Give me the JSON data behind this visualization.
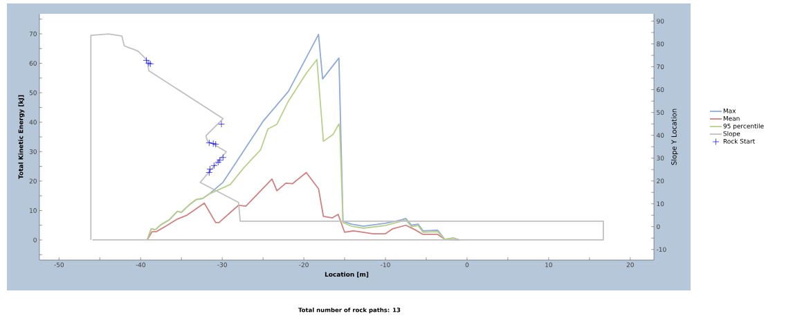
{
  "chart_data": {
    "type": "line",
    "xlabel": "Location [m]",
    "ylabel": "Total Kinetic Energy [kJ]",
    "y2label": "Slope Y Location",
    "xlim": [
      -52.4,
      22.9
    ],
    "ylim": [
      -6.8,
      76.8
    ],
    "y2lim": [
      -14.6,
      93.2
    ],
    "xticks": [
      -50,
      {
        "value": -45,
        "label": null
      },
      -40,
      {
        "value": -35,
        "label": null
      },
      -30,
      {
        "value": -25,
        "label": null
      },
      -20,
      {
        "value": -15,
        "label": null
      },
      -10,
      {
        "value": -5,
        "label": null
      },
      0,
      {
        "value": 5,
        "label": null
      },
      10,
      {
        "value": 15,
        "label": null
      },
      20
    ],
    "yticks": [
      {
        "value": -5,
        "label": null
      },
      0,
      {
        "value": 5,
        "label": null
      },
      10,
      {
        "value": 15,
        "label": null
      },
      20,
      {
        "value": 25,
        "label": null
      },
      30,
      {
        "value": 35,
        "label": null
      },
      40,
      {
        "value": 45,
        "label": null
      },
      50,
      {
        "value": 55,
        "label": null
      },
      60,
      {
        "value": 65,
        "label": null
      },
      70,
      {
        "value": 75,
        "label": null
      }
    ],
    "y2ticks": [
      -10,
      {
        "value": -5,
        "label": null
      },
      0,
      {
        "value": 5,
        "label": null
      },
      10,
      {
        "value": 15,
        "label": null
      },
      20,
      {
        "value": 25,
        "label": null
      },
      30,
      {
        "value": 35,
        "label": null
      },
      40,
      {
        "value": 45,
        "label": null
      },
      50,
      {
        "value": 55,
        "label": null
      },
      60,
      {
        "value": 65,
        "label": null
      },
      70,
      {
        "value": 75,
        "label": null
      },
      80,
      {
        "value": 85,
        "label": null
      },
      90
    ],
    "legend": "right",
    "series": [
      {
        "name": "Max",
        "color": "#8eaad6",
        "x": [
          -39.2,
          -38.7,
          -38.2,
          -37.5,
          -36.5,
          -35.5,
          -35.0,
          -34.1,
          -33.2,
          -32.4,
          -31.6,
          -29.9,
          -25.0,
          -21.9,
          -18.2,
          -17.7,
          -15.7,
          -15.2,
          -14.2,
          -12.7,
          -10.0,
          -8.1,
          -7.5,
          -6.8,
          -6.0,
          -5.4,
          -3.6,
          -2.7,
          -1.7,
          -0.9
        ],
        "values": [
          0,
          3.8,
          3.5,
          5.2,
          6.8,
          9.7,
          9.4,
          11.8,
          13.7,
          14.1,
          15.6,
          19.6,
          40.3,
          50.4,
          69.8,
          54.7,
          61.8,
          6.4,
          5.4,
          4.7,
          5.7,
          6.8,
          7.3,
          5.0,
          5.4,
          3.1,
          3.3,
          0.2,
          0.7,
          0
        ]
      },
      {
        "name": "Mean",
        "color": "#d08080",
        "x": [
          -39.2,
          -38.6,
          -38.1,
          -36.9,
          -35.5,
          -34.4,
          -33.2,
          -32.2,
          -30.8,
          -30.4,
          -28.0,
          -27.1,
          -23.9,
          -23.3,
          -22.2,
          -21.4,
          -19.7,
          -18.2,
          -17.6,
          -16.5,
          -15.8,
          -15.0,
          -13.9,
          -12.7,
          -11.5,
          -10.0,
          -9.1,
          -7.5,
          -6.4,
          -5.4,
          -3.6,
          -2.7,
          -0.9
        ],
        "values": [
          0,
          2.8,
          2.8,
          4.7,
          7.1,
          8.3,
          10.6,
          12.5,
          5.9,
          5.9,
          11.8,
          11.5,
          20.7,
          16.7,
          19.3,
          19.1,
          22.9,
          17.4,
          8.0,
          7.5,
          8.7,
          2.6,
          3.1,
          2.6,
          2.1,
          2.1,
          3.8,
          5.0,
          3.5,
          1.9,
          1.9,
          0.2,
          0
        ]
      },
      {
        "name": "95 percentile",
        "color": "#b8d08a",
        "x": [
          -39.2,
          -38.7,
          -38.2,
          -37.5,
          -36.5,
          -35.5,
          -35.0,
          -34.1,
          -33.2,
          -32.4,
          -31.6,
          -29.0,
          -27.3,
          -25.3,
          -24.4,
          -23.3,
          -21.9,
          -19.7,
          -18.4,
          -17.6,
          -16.4,
          -15.7,
          -15.6,
          -15.2,
          -14.2,
          -12.7,
          -10.0,
          -7.5,
          -6.8,
          -6.0,
          -5.4,
          -3.6,
          -2.7,
          -1.7,
          -0.9
        ],
        "values": [
          0,
          3.8,
          3.5,
          5.2,
          6.8,
          9.7,
          9.4,
          11.8,
          13.7,
          14.1,
          15.6,
          18.9,
          24.7,
          30.6,
          37.7,
          39.3,
          47.1,
          56.6,
          61.3,
          33.5,
          35.9,
          39.4,
          37.9,
          5.9,
          4.7,
          4.0,
          4.9,
          6.8,
          4.5,
          4.9,
          2.6,
          2.8,
          0.2,
          0.7,
          0
        ]
      },
      {
        "name": "Slope",
        "color": "#c0c0c0",
        "axis": "y2",
        "x": [
          -46.1,
          -46.1,
          -45.0,
          -43.9,
          -42.8,
          -42.3,
          -42.2,
          -42.0,
          -41.4,
          -40.9,
          -40.3,
          -39.7,
          -39.2,
          -39.0,
          -29.9,
          -32.0,
          -31.8,
          -31.2,
          -29.5,
          -32.7,
          -28.0,
          -27.8,
          16.7,
          16.7,
          -45.9
        ],
        "values": [
          -5.8,
          83.8,
          84.1,
          84.4,
          83.8,
          83.5,
          81.9,
          79.2,
          78.3,
          77.7,
          76.8,
          74.7,
          72.8,
          68.3,
          47.3,
          39.8,
          37.3,
          36.4,
          32.8,
          19.4,
          10.6,
          2.4,
          2.4,
          -5.8,
          -5.8
        ]
      },
      {
        "name": "Rock Start",
        "color": "#0000ff",
        "axis": "y2",
        "type": "scatter",
        "marker": "cross",
        "x": [
          -39.3,
          -39.0,
          -38.8,
          -30.1,
          -31.6,
          -31.1,
          -30.8,
          -29.9,
          -30.3,
          -30.5,
          -31.0,
          -31.5,
          -31.6
        ],
        "values": [
          72.8,
          71.6,
          71.3,
          44.9,
          36.7,
          36.4,
          36.1,
          30.3,
          29.1,
          28.2,
          26.7,
          25.2,
          23.7
        ]
      }
    ],
    "annotations": [
      "Total number of rock paths:  13"
    ]
  }
}
